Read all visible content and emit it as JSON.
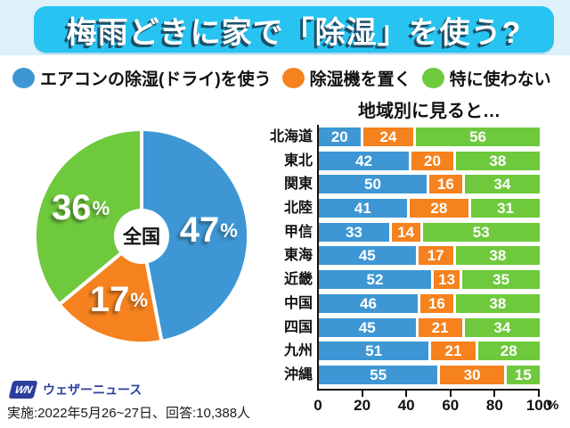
{
  "title": "梅雨どきに家で「除湿」を使う?",
  "legend": [
    {
      "label": "エアコンの除湿(ドライ)を使う",
      "color": "#3E97D4"
    },
    {
      "label": "除湿機を置く",
      "color": "#F5821E"
    },
    {
      "label": "特に使わない",
      "color": "#6EC93C"
    }
  ],
  "colors": {
    "titlebar_bg": "#27C3F1",
    "strip_bg": "#DCF1FA",
    "blue": "#3E97D4",
    "orange": "#F5821E",
    "green": "#6EC93C",
    "logo_blue": "#2B3F9E"
  },
  "chart_data": [
    {
      "type": "pie",
      "title": "全国",
      "labels": [
        "エアコンの除湿(ドライ)を使う",
        "除湿機を置く",
        "特に使わない"
      ],
      "values": [
        47,
        17,
        36
      ],
      "unit": "%",
      "colors": [
        "#3E97D4",
        "#F5821E",
        "#6EC93C"
      ],
      "start_angle": "top",
      "direction": "clockwise"
    },
    {
      "type": "bar",
      "orientation": "horizontal-stacked",
      "title": "地域別に見ると…",
      "categories": [
        "北海道",
        "東北",
        "関東",
        "北陸",
        "甲信",
        "東海",
        "近畿",
        "中国",
        "四国",
        "九州",
        "沖縄"
      ],
      "series": [
        {
          "name": "エアコンの除湿(ドライ)を使う",
          "color": "#3E97D4",
          "values": [
            20,
            42,
            50,
            41,
            33,
            45,
            52,
            46,
            45,
            51,
            55
          ]
        },
        {
          "name": "除湿機を置く",
          "color": "#F5821E",
          "values": [
            24,
            20,
            16,
            28,
            14,
            17,
            13,
            16,
            21,
            21,
            30
          ]
        },
        {
          "name": "特に使わない",
          "color": "#6EC93C",
          "values": [
            56,
            38,
            34,
            31,
            53,
            38,
            35,
            38,
            34,
            28,
            15
          ]
        }
      ],
      "xlim": [
        0,
        100
      ],
      "xticks": [
        0,
        20,
        40,
        60,
        80,
        100
      ],
      "x_unit": "%"
    }
  ],
  "footer": {
    "logo_badge": "WN",
    "logo_text": "ウェザーニュース",
    "survey_note": "実施:2022年5月26~27日、回答:10,388人"
  }
}
